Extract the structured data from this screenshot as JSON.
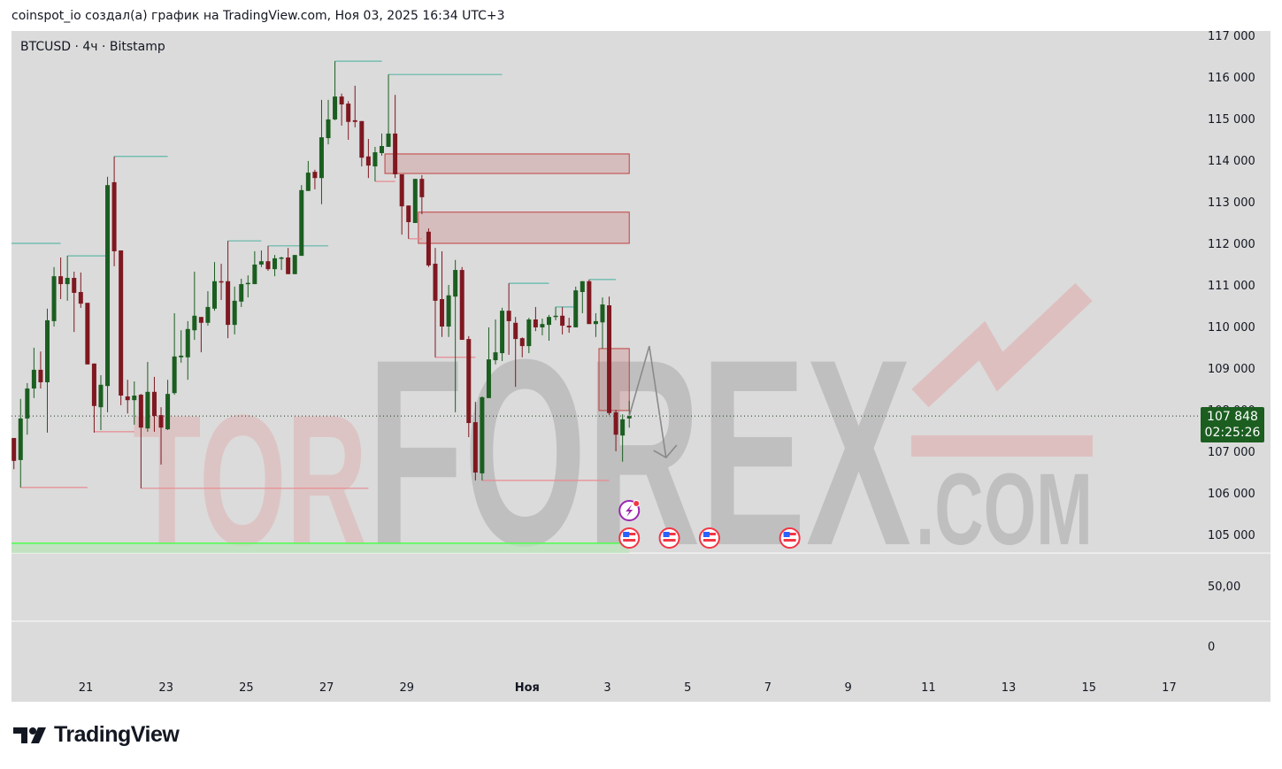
{
  "header": {
    "credit": "coinspot_io создал(а) график на TradingView.com, Ноя 03, 2025 16:34 UTC+3"
  },
  "chart": {
    "symbol_line": "BTCUSD · 4ч · Bitstamp"
  },
  "price_box": {
    "price": "107 848",
    "countdown": "02:25:26",
    "color": "#1b5e20"
  },
  "watermark": {
    "text_pink": "TOR",
    "text_gray": "FOREX",
    "text_suffix": ".COM"
  },
  "footer": {
    "brand": "TradingView"
  },
  "colors": {
    "up": "#1b5e20",
    "down": "#7f1820",
    "background": "#dbdbdb",
    "resistance": "#5fb8a8",
    "support": "#e88a90",
    "zone_fill": "rgba(200,110,110,0.28)",
    "zone_border": "#c04040",
    "support_line": "#4cff4c"
  },
  "chart_data": {
    "type": "candlestick",
    "title": "BTCUSD · 4ч · Bitstamp",
    "ylim": [
      104800,
      117000
    ],
    "y_ticks": [
      "117 000",
      "116 000",
      "115 000",
      "114 000",
      "113 000",
      "112 000",
      "111 000",
      "110 000",
      "109 000",
      "108 000",
      "107 000",
      "106 000",
      "105 000"
    ],
    "y_tick_values": [
      117000,
      116000,
      115000,
      114000,
      113000,
      112000,
      111000,
      110000,
      109000,
      108000,
      107000,
      106000,
      105000
    ],
    "x_ticks": [
      "21",
      "23",
      "25",
      "27",
      "29",
      "Ноя",
      "3",
      "5",
      "7",
      "9",
      "11",
      "13",
      "15",
      "17"
    ],
    "lower_pane_labels": [
      "50,00",
      "0"
    ],
    "current_price": 107848,
    "candles_ohlc": [
      [
        107320,
        107320,
        106570,
        106770
      ],
      [
        106790,
        108260,
        106130,
        107790
      ],
      [
        107790,
        108640,
        107400,
        108510
      ],
      [
        108510,
        109490,
        108280,
        108960
      ],
      [
        108960,
        109400,
        108510,
        108660
      ],
      [
        108660,
        110430,
        107450,
        110150
      ],
      [
        110130,
        111430,
        110000,
        111210
      ],
      [
        111210,
        111660,
        110660,
        111020
      ],
      [
        111020,
        111700,
        110620,
        111170
      ],
      [
        111170,
        111320,
        109870,
        110810
      ],
      [
        110830,
        111300,
        110450,
        110550
      ],
      [
        110570,
        110570,
        109090,
        109090
      ],
      [
        109110,
        109110,
        107450,
        108090
      ],
      [
        108060,
        108830,
        107510,
        108600
      ],
      [
        108570,
        113600,
        107940,
        113400
      ],
      [
        113470,
        114090,
        111450,
        111810
      ],
      [
        111830,
        111830,
        108110,
        108340
      ],
      [
        108320,
        108720,
        107910,
        108230
      ],
      [
        108230,
        108680,
        107640,
        108340
      ],
      [
        108360,
        108380,
        106110,
        107570
      ],
      [
        107550,
        109150,
        107470,
        108430
      ],
      [
        108430,
        108790,
        107470,
        107850
      ],
      [
        107870,
        108060,
        106680,
        107570
      ],
      [
        107530,
        108720,
        107510,
        108380
      ],
      [
        108400,
        110320,
        108360,
        109280
      ],
      [
        109260,
        109910,
        109130,
        109300
      ],
      [
        109260,
        110130,
        108720,
        109940
      ],
      [
        109910,
        111320,
        109680,
        110260
      ],
      [
        110230,
        110230,
        109380,
        110090
      ],
      [
        110090,
        110850,
        110020,
        110470
      ],
      [
        110430,
        111550,
        110380,
        111090
      ],
      [
        111090,
        111510,
        110640,
        111060
      ],
      [
        111090,
        112060,
        109720,
        110040
      ],
      [
        110040,
        110960,
        109810,
        110620
      ],
      [
        110600,
        111150,
        110470,
        111020
      ],
      [
        111030,
        111230,
        110700,
        111050
      ],
      [
        111020,
        111810,
        111020,
        111490
      ],
      [
        111490,
        111830,
        111430,
        111570
      ],
      [
        111570,
        111940,
        111340,
        111380
      ],
      [
        111380,
        111720,
        111210,
        111640
      ],
      [
        111640,
        111680,
        111360,
        111660
      ],
      [
        111660,
        111890,
        111260,
        111260
      ],
      [
        111260,
        111720,
        111260,
        111720
      ],
      [
        111700,
        113400,
        111700,
        113280
      ],
      [
        113260,
        113980,
        113260,
        113700
      ],
      [
        113720,
        113770,
        113300,
        113570
      ],
      [
        113570,
        115450,
        112940,
        114550
      ],
      [
        114530,
        115450,
        114380,
        114980
      ],
      [
        114980,
        116380,
        114960,
        115530
      ],
      [
        115530,
        115600,
        114830,
        115340
      ],
      [
        115360,
        115420,
        114490,
        114920
      ],
      [
        114960,
        115790,
        114790,
        114920
      ],
      [
        114940,
        114940,
        113850,
        114060
      ],
      [
        114090,
        114510,
        113570,
        113870
      ],
      [
        113850,
        114320,
        113490,
        114190
      ],
      [
        114170,
        114640,
        114110,
        114340
      ],
      [
        114320,
        116060,
        114320,
        114640
      ],
      [
        114640,
        115570,
        113570,
        113660
      ],
      [
        113660,
        113660,
        112210,
        112890
      ],
      [
        112910,
        112910,
        112110,
        112510
      ],
      [
        112490,
        113550,
        112490,
        113550
      ],
      [
        113550,
        113640,
        112700,
        113110
      ],
      [
        112280,
        112360,
        111430,
        111470
      ],
      [
        111510,
        111890,
        109260,
        110620
      ],
      [
        110660,
        111810,
        109750,
        110000
      ],
      [
        110000,
        111000,
        109750,
        110750
      ],
      [
        110720,
        111600,
        107940,
        111360
      ],
      [
        111360,
        111430,
        109680,
        109680
      ],
      [
        109700,
        109770,
        107340,
        107680
      ],
      [
        107700,
        108190,
        106300,
        106490
      ],
      [
        106470,
        108320,
        106300,
        108300
      ],
      [
        108280,
        109980,
        108280,
        109210
      ],
      [
        109190,
        110170,
        109090,
        109380
      ],
      [
        109360,
        110450,
        109170,
        110380
      ],
      [
        110380,
        111040,
        109320,
        110130
      ],
      [
        110090,
        110230,
        108550,
        109700
      ],
      [
        109720,
        109740,
        109260,
        109530
      ],
      [
        109530,
        110210,
        109360,
        110170
      ],
      [
        110170,
        110470,
        109890,
        109980
      ],
      [
        109980,
        110190,
        109790,
        110060
      ],
      [
        110040,
        110280,
        109660,
        110230
      ],
      [
        110230,
        110470,
        110150,
        110260
      ],
      [
        110260,
        110470,
        109810,
        110020
      ],
      [
        110020,
        110210,
        109850,
        109980
      ],
      [
        109980,
        110960,
        109980,
        110870
      ],
      [
        110830,
        111090,
        110320,
        111090
      ],
      [
        111090,
        111130,
        110060,
        110060
      ],
      [
        110060,
        110320,
        109750,
        110130
      ],
      [
        110100,
        110700,
        109470,
        110530
      ],
      [
        110510,
        110720,
        107870,
        107920
      ],
      [
        107940,
        108000,
        107000,
        107400
      ],
      [
        107380,
        107890,
        106750,
        107770
      ],
      [
        107790,
        108210,
        107570,
        107848
      ]
    ],
    "resistance_levels": [
      {
        "price": 112000,
        "from_bar": -1,
        "to_bar": 7
      },
      {
        "price": 111700,
        "from_bar": 8,
        "to_bar": 14
      },
      {
        "price": 114090,
        "from_bar": 15,
        "to_bar": 23
      },
      {
        "price": 112060,
        "from_bar": 32,
        "to_bar": 37
      },
      {
        "price": 111940,
        "from_bar": 38,
        "to_bar": 47
      },
      {
        "price": 116380,
        "from_bar": 48,
        "to_bar": 55
      },
      {
        "price": 116060,
        "from_bar": 56,
        "to_bar": 73
      },
      {
        "price": 111040,
        "from_bar": 74,
        "to_bar": 80
      },
      {
        "price": 110470,
        "from_bar": 81,
        "to_bar": 84
      },
      {
        "price": 111130,
        "from_bar": 86,
        "to_bar": 90
      }
    ],
    "support_levels": [
      {
        "price": 106130,
        "from_bar": 1,
        "to_bar": 11
      },
      {
        "price": 107470,
        "from_bar": 12,
        "to_bar": 18
      },
      {
        "price": 106110,
        "from_bar": 19,
        "to_bar": 53
      },
      {
        "price": 113490,
        "from_bar": 54,
        "to_bar": 57
      },
      {
        "price": 112110,
        "from_bar": 59,
        "to_bar": 61
      },
      {
        "price": 109260,
        "from_bar": 63,
        "to_bar": 69
      },
      {
        "price": 106300,
        "from_bar": 70,
        "to_bar": 89
      }
    ],
    "zones": [
      {
        "top": 114150,
        "bottom": 113680,
        "from_bar": 56,
        "to_bar": 92
      },
      {
        "top": 112750,
        "bottom": 112000,
        "from_bar": 61,
        "to_bar": 92
      },
      {
        "top": 109470,
        "bottom": 107980,
        "from_bar": 88,
        "to_bar": 92
      }
    ],
    "projection_path": [
      {
        "bar": 92,
        "price": 107848
      },
      {
        "bar": 95,
        "price": 109530
      },
      {
        "bar": 97.5,
        "price": 106850
      }
    ],
    "horizontal_support": {
      "price": 104790
    },
    "events": [
      {
        "type": "lightning-event-icon",
        "bar": 92,
        "row": 0
      },
      {
        "type": "us-flag-event-icon",
        "bar": 92,
        "row": 1
      },
      {
        "type": "us-flag-event-icon",
        "bar": 98,
        "row": 1
      },
      {
        "type": "us-flag-event-icon",
        "bar": 104,
        "row": 1
      },
      {
        "type": "us-flag-event-icon",
        "bar": 116,
        "row": 1
      }
    ]
  }
}
